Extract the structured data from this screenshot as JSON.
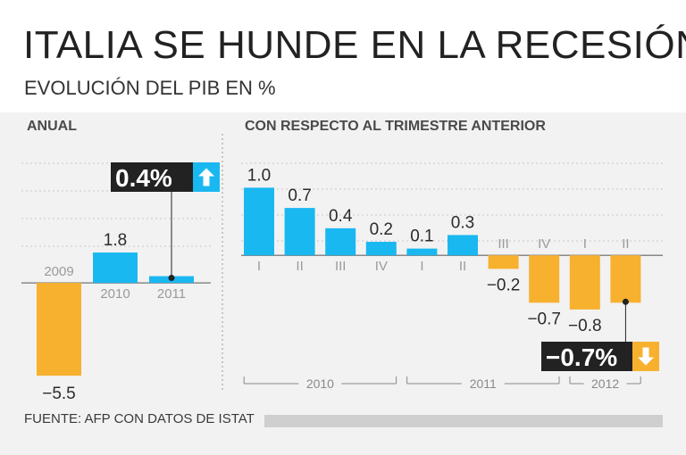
{
  "title": "ITALIA SE HUNDE EN LA RECESIÓN",
  "subtitle": "EVOLUCIÓN DEL PIB EN %",
  "source": "FUENTE: AFP CON DATOS DE ISTAT",
  "colors": {
    "positive": "#1ab8f0",
    "negative": "#f7b12f",
    "callout_bg": "#222222",
    "axis": "#888888"
  },
  "chart_data": [
    {
      "type": "bar",
      "title": "ANUAL",
      "categories": [
        "2009",
        "2010",
        "2011"
      ],
      "values": [
        -5.5,
        1.8,
        0.4
      ],
      "value_labels": [
        "-5.5",
        "1.8",
        ""
      ],
      "ylim": [
        -6.5,
        4.5
      ],
      "callout": {
        "text": "0.4%",
        "target_index": 2,
        "direction": "up",
        "icon": "arrow-up-icon"
      }
    },
    {
      "type": "bar",
      "title": "CON RESPECTO AL TRIMESTRE ANTERIOR",
      "categories": [
        "I",
        "II",
        "III",
        "IV",
        "I",
        "II",
        "III",
        "IV",
        "I",
        "II"
      ],
      "years": [
        {
          "label": "2010",
          "start": 0,
          "end": 3
        },
        {
          "label": "2011",
          "start": 4,
          "end": 7
        },
        {
          "label": "2012",
          "start": 8,
          "end": 9
        }
      ],
      "values": [
        1.0,
        0.7,
        0.4,
        0.2,
        0.1,
        0.3,
        -0.2,
        -0.7,
        -0.8,
        -0.7
      ],
      "value_labels": [
        "1.0",
        "0.7",
        "0.4",
        "0.2",
        "0.1",
        "0.3",
        "-0.2",
        "-0.7",
        "-0.8",
        ""
      ],
      "ylim": [
        -1.5,
        1.4
      ],
      "callout": {
        "text": "-0.7%",
        "target_index": 9,
        "direction": "down",
        "icon": "arrow-down-icon"
      }
    }
  ]
}
